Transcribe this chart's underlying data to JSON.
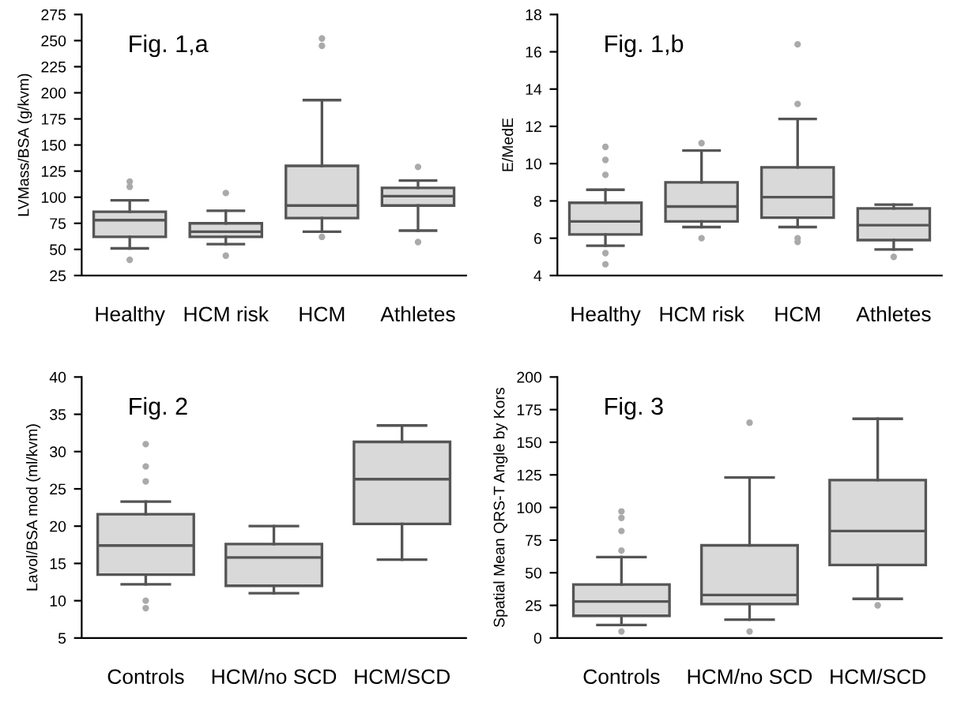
{
  "chart_data": [
    {
      "type": "box",
      "title": "Fig. 1,a",
      "ylabel": "LVMass/BSA (g/kvm)",
      "categories": [
        "Healthy",
        "HCM risk",
        "HCM",
        "Athletes"
      ],
      "ylim": [
        25,
        275
      ],
      "yticks": [
        25,
        50,
        75,
        100,
        125,
        150,
        175,
        200,
        225,
        250,
        275
      ],
      "grid": false,
      "color": "#d9d9d9",
      "boxes": [
        {
          "low": 51,
          "q1": 62,
          "median": 78,
          "q3": 86,
          "high": 97,
          "outliers": [
            110,
            115,
            40
          ]
        },
        {
          "low": 55,
          "q1": 62,
          "median": 67,
          "q3": 75,
          "high": 87,
          "outliers": [
            104,
            44
          ]
        },
        {
          "low": 67,
          "q1": 80,
          "median": 92,
          "q3": 130,
          "high": 193,
          "outliers": [
            62,
            245,
            252
          ]
        },
        {
          "low": 68,
          "q1": 92,
          "median": 101,
          "q3": 109,
          "high": 116,
          "outliers": [
            129,
            57
          ]
        }
      ]
    },
    {
      "type": "box",
      "title": "Fig. 1,b",
      "ylabel": "E/MedE",
      "categories": [
        "Healthy",
        "HCM risk",
        "HCM",
        "Athletes"
      ],
      "ylim": [
        4,
        18
      ],
      "yticks": [
        4,
        6,
        8,
        10,
        12,
        14,
        16,
        18
      ],
      "grid": false,
      "color": "#d9d9d9",
      "boxes": [
        {
          "low": 5.6,
          "q1": 6.2,
          "median": 6.9,
          "q3": 7.9,
          "high": 8.6,
          "outliers": [
            9.4,
            10.2,
            10.9,
            5.2,
            4.6
          ]
        },
        {
          "low": 6.6,
          "q1": 6.9,
          "median": 7.7,
          "q3": 9.0,
          "high": 10.7,
          "outliers": [
            11.1,
            6.0
          ]
        },
        {
          "low": 6.6,
          "q1": 7.1,
          "median": 8.2,
          "q3": 9.8,
          "high": 12.4,
          "outliers": [
            13.2,
            16.4,
            6.0,
            5.8
          ]
        },
        {
          "low": 5.4,
          "q1": 5.9,
          "median": 6.7,
          "q3": 7.6,
          "high": 7.8,
          "outliers": [
            5.0
          ]
        }
      ]
    },
    {
      "type": "box",
      "title": "Fig. 2",
      "ylabel": "Lavol/BSA mod (ml/kvm)",
      "categories": [
        "Controls",
        "HCM/no SCD",
        "HCM/SCD"
      ],
      "ylim": [
        5,
        40
      ],
      "yticks": [
        5,
        10,
        15,
        20,
        25,
        30,
        35,
        40
      ],
      "grid": false,
      "color": "#d9d9d9",
      "boxes": [
        {
          "low": 12.2,
          "q1": 13.5,
          "median": 17.4,
          "q3": 21.6,
          "high": 23.3,
          "outliers": [
            26,
            28,
            31,
            10,
            9
          ]
        },
        {
          "low": 11,
          "q1": 12,
          "median": 15.8,
          "q3": 17.6,
          "high": 20
        },
        {
          "low": 15.5,
          "q1": 20.3,
          "median": 26.3,
          "q3": 31.3,
          "high": 33.5
        }
      ]
    },
    {
      "type": "box",
      "title": "Fig. 3",
      "ylabel": "Spatial Mean QRS-T Angle by Kors",
      "categories": [
        "Controls",
        "HCM/no SCD",
        "HCM/SCD"
      ],
      "ylim": [
        0,
        200
      ],
      "yticks": [
        0,
        25,
        50,
        75,
        100,
        125,
        150,
        175,
        200
      ],
      "grid": false,
      "color": "#d9d9d9",
      "boxes": [
        {
          "low": 10,
          "q1": 17,
          "median": 28,
          "q3": 41,
          "high": 62,
          "outliers": [
            67,
            82,
            92,
            97,
            5
          ]
        },
        {
          "low": 14,
          "q1": 26,
          "median": 33,
          "q3": 71,
          "high": 123,
          "outliers": [
            165,
            5
          ]
        },
        {
          "low": 30,
          "q1": 56,
          "median": 82,
          "q3": 121,
          "high": 168,
          "outliers": [
            25
          ]
        }
      ]
    }
  ]
}
